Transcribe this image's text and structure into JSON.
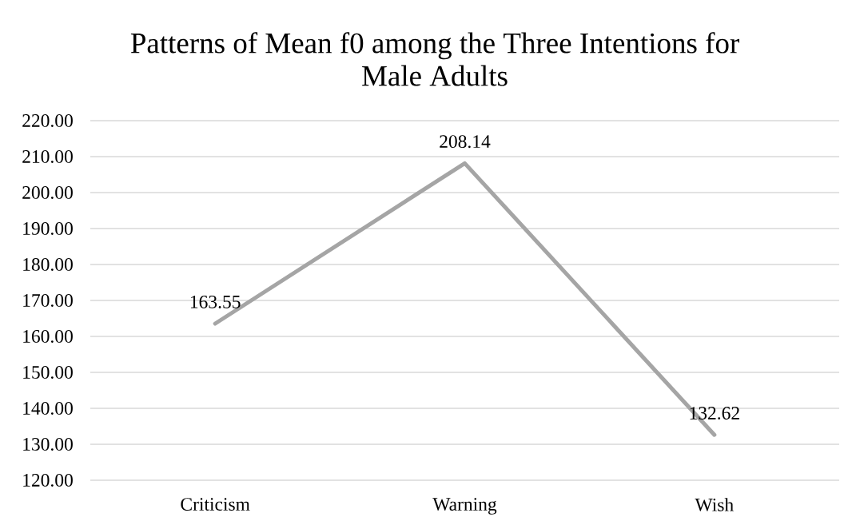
{
  "chart_data": {
    "type": "line",
    "title": "Patterns of Mean f0 among the Three Intentions for Male Adults",
    "categories": [
      "Criticism",
      "Warning",
      "Wish"
    ],
    "values": [
      163.55,
      208.14,
      132.62
    ],
    "color": "#a5a5a5",
    "ylim": [
      120,
      220
    ],
    "yticks": [
      {
        "value": 120,
        "label": "120.00"
      },
      {
        "value": 130,
        "label": "130.00"
      },
      {
        "value": 140,
        "label": "140.00"
      },
      {
        "value": 150,
        "label": "150.00"
      },
      {
        "value": 160,
        "label": "160.00"
      },
      {
        "value": 170,
        "label": "170.00"
      },
      {
        "value": 180,
        "label": "180.00"
      },
      {
        "value": 190,
        "label": "190.00"
      },
      {
        "value": 200,
        "label": "200.00"
      },
      {
        "value": 210,
        "label": "210.00"
      },
      {
        "value": 220,
        "label": "220.00"
      }
    ],
    "grid": "y",
    "data_labels": true,
    "marker": "none",
    "line_style": "solid"
  }
}
